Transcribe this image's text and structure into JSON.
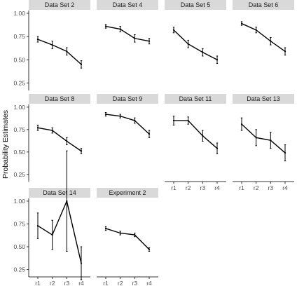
{
  "chart_data": {
    "type": "line",
    "ylabel": "Probability Estimates",
    "xlabel": "",
    "categories": [
      "r1",
      "r2",
      "r3",
      "r4"
    ],
    "ylim": [
      0.17,
      1.03
    ],
    "yticks": [
      "0.25",
      "0.50",
      "0.75",
      "1.00"
    ],
    "ytick_values": [
      0.25,
      0.5,
      0.75,
      1.0
    ],
    "grid": false,
    "facet_layout": "4 columns, 3 rows",
    "colors": {
      "strip": "#d9d9d9",
      "line": "#000000",
      "axis": "#333333",
      "text": "#1a1a1a"
    },
    "panels": [
      {
        "title": "Data Set 2",
        "values": [
          0.72,
          0.66,
          0.59,
          0.45
        ],
        "errors": [
          0.03,
          0.04,
          0.04,
          0.04
        ]
      },
      {
        "title": "Data Set 4",
        "values": [
          0.86,
          0.83,
          0.73,
          0.7
        ],
        "errors": [
          0.02,
          0.03,
          0.04,
          0.03
        ]
      },
      {
        "title": "Data Set 5",
        "values": [
          0.82,
          0.67,
          0.58,
          0.5
        ],
        "errors": [
          0.03,
          0.04,
          0.04,
          0.04
        ]
      },
      {
        "title": "Data Set 6",
        "values": [
          0.89,
          0.82,
          0.7,
          0.59
        ],
        "errors": [
          0.02,
          0.03,
          0.04,
          0.04
        ]
      },
      {
        "title": "Data Set 8",
        "values": [
          0.77,
          0.74,
          0.62,
          0.51
        ],
        "errors": [
          0.03,
          0.03,
          0.04,
          0.03
        ]
      },
      {
        "title": "Data Set 9",
        "values": [
          0.92,
          0.9,
          0.85,
          0.7
        ],
        "errors": [
          0.02,
          0.02,
          0.03,
          0.04
        ]
      },
      {
        "title": "Data Set 11",
        "values": [
          0.85,
          0.85,
          0.68,
          0.54
        ],
        "errors": [
          0.05,
          0.04,
          0.06,
          0.06
        ]
      },
      {
        "title": "Data Set 13",
        "values": [
          0.81,
          0.66,
          0.63,
          0.49
        ],
        "errors": [
          0.07,
          0.09,
          0.09,
          0.09
        ]
      },
      {
        "title": "Data Set 14",
        "values": [
          0.73,
          0.63,
          1.0,
          0.32
        ],
        "errors": [
          0.14,
          0.16,
          0.55,
          0.18
        ]
      },
      {
        "title": "Experiment 2",
        "values": [
          0.7,
          0.65,
          0.63,
          0.47
        ],
        "errors": [
          0.02,
          0.02,
          0.02,
          0.02
        ]
      }
    ]
  }
}
